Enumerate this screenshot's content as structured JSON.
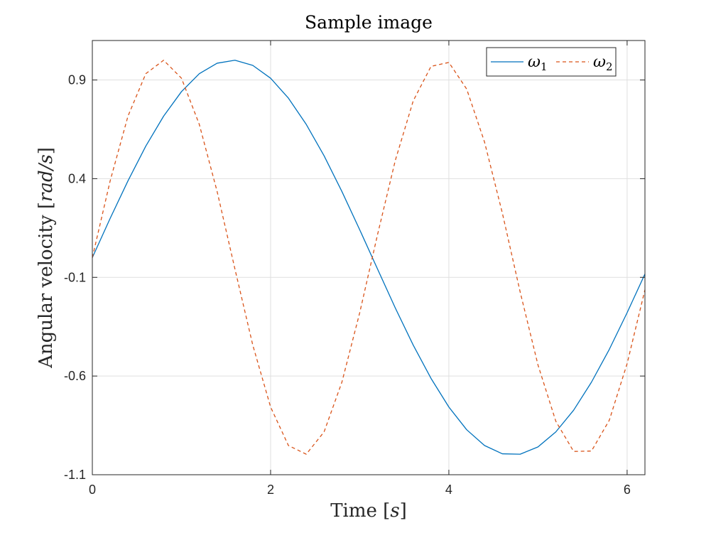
{
  "chart_data": {
    "type": "line",
    "title": "Sample image",
    "xlabel": "Time [s]",
    "xlabel_parts": {
      "prefix": "Time ",
      "open": "[",
      "var": "s",
      "close": "]"
    },
    "ylabel": "Angular velocity [rad/s]",
    "ylabel_parts": {
      "prefix": "Angular velocity ",
      "open": "[",
      "var": "rad/s",
      "close": "]"
    },
    "xlim": [
      0,
      6.2
    ],
    "ylim": [
      -1.1,
      1.1
    ],
    "xticks": [
      0,
      2,
      4,
      6
    ],
    "xtick_labels": [
      "0",
      "2",
      "4",
      "6"
    ],
    "yticks": [
      -1.1,
      -0.6,
      -0.1,
      0.4,
      0.9
    ],
    "ytick_labels": [
      "-1.1",
      "-0.6",
      "-0.1",
      "0.4",
      "0.9"
    ],
    "grid": true,
    "legend_position": "top-right",
    "series": [
      {
        "name": "ω1",
        "color": "#0072BD",
        "dash": "solid",
        "x": [
          0,
          0.2,
          0.4,
          0.6,
          0.8,
          1.0,
          1.2,
          1.4,
          1.6,
          1.8,
          2.0,
          2.2,
          2.4,
          2.6,
          2.8,
          3.0,
          3.2,
          3.4,
          3.6,
          3.8,
          4.0,
          4.2,
          4.4,
          4.6,
          4.8,
          5.0,
          5.2,
          5.4,
          5.6,
          5.8,
          6.0,
          6.2
        ],
        "y": [
          0,
          0.199,
          0.389,
          0.565,
          0.717,
          0.841,
          0.932,
          0.985,
          1.0,
          0.974,
          0.909,
          0.808,
          0.675,
          0.516,
          0.335,
          0.141,
          -0.058,
          -0.256,
          -0.443,
          -0.612,
          -0.757,
          -0.872,
          -0.952,
          -0.994,
          -0.996,
          -0.959,
          -0.883,
          -0.773,
          -0.631,
          -0.465,
          -0.279,
          -0.083
        ]
      },
      {
        "name": "ω2",
        "color": "#D95319",
        "dash": "dashed",
        "x": [
          0,
          0.2,
          0.4,
          0.6,
          0.8,
          1.0,
          1.2,
          1.4,
          1.6,
          1.8,
          2.0,
          2.2,
          2.4,
          2.6,
          2.8,
          3.0,
          3.2,
          3.4,
          3.6,
          3.8,
          4.0,
          4.2,
          4.4,
          4.6,
          4.8,
          5.0,
          5.2,
          5.4,
          5.6,
          5.8,
          6.0,
          6.2
        ],
        "y": [
          0,
          0.389,
          0.717,
          0.932,
          1.0,
          0.909,
          0.675,
          0.335,
          -0.058,
          -0.443,
          -0.757,
          -0.952,
          -0.996,
          -0.883,
          -0.631,
          -0.279,
          0.117,
          0.494,
          0.794,
          0.969,
          0.989,
          0.854,
          0.586,
          0.226,
          -0.174,
          -0.544,
          -0.829,
          -0.982,
          -0.98,
          -0.824,
          -0.537,
          -0.163
        ]
      }
    ]
  }
}
